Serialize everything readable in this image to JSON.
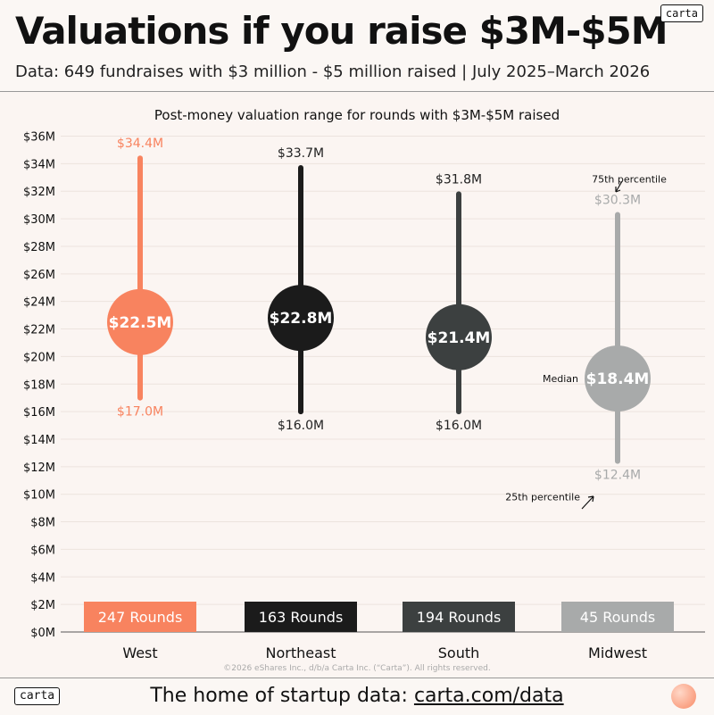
{
  "header": {
    "title": "Valuations if you raise $3M-$5M",
    "subtitle": "Data: 649 fundraises with $3 million - $5 million raised | July 2025–March 2026",
    "logo": "carta"
  },
  "chart_data": {
    "type": "range",
    "title": "Post-money valuation range for rounds with $3M-$5M raised",
    "ylim": [
      0,
      36
    ],
    "yticks": [
      "$0M",
      "$2M",
      "$4M",
      "$6M",
      "$8M",
      "$10M",
      "$12M",
      "$14M",
      "$16M",
      "$18M",
      "$20M",
      "$22M",
      "$24M",
      "$26M",
      "$28M",
      "$30M",
      "$32M",
      "$34M",
      "$36M"
    ],
    "grid": true,
    "categories": [
      {
        "name": "West",
        "p25": 17.0,
        "median": 22.5,
        "p75": 34.4,
        "p25_label": "$17.0M",
        "median_label": "$22.5M",
        "p75_label": "$34.4M",
        "rounds_label": "247 Rounds",
        "color": "#f8835f"
      },
      {
        "name": "Northeast",
        "p25": 16.0,
        "median": 22.8,
        "p75": 33.7,
        "p25_label": "$16.0M",
        "median_label": "$22.8M",
        "p75_label": "$33.7M",
        "rounds_label": "163 Rounds",
        "color": "#1b1b1b"
      },
      {
        "name": "South",
        "p25": 16.0,
        "median": 21.4,
        "p75": 31.8,
        "p25_label": "$16.0M",
        "median_label": "$21.4M",
        "p75_label": "$31.8M",
        "rounds_label": "194 Rounds",
        "color": "#3c4040"
      },
      {
        "name": "Midwest",
        "p25": 12.4,
        "median": 18.4,
        "p75": 30.3,
        "p25_label": "$12.4M",
        "median_label": "$18.4M",
        "p75_label": "$30.3M",
        "rounds_label": "45 Rounds",
        "color": "#a8aaaa"
      }
    ],
    "annotations": {
      "p75": "75th percentile",
      "median": "Median",
      "p25": "25th percentile"
    }
  },
  "copyright": "©2026 eShares Inc., d/b/a Carta Inc. (“Carta”). All rights reserved.",
  "footer": {
    "logo": "carta",
    "text": "The home of startup data: ",
    "link": "carta.com/data"
  }
}
